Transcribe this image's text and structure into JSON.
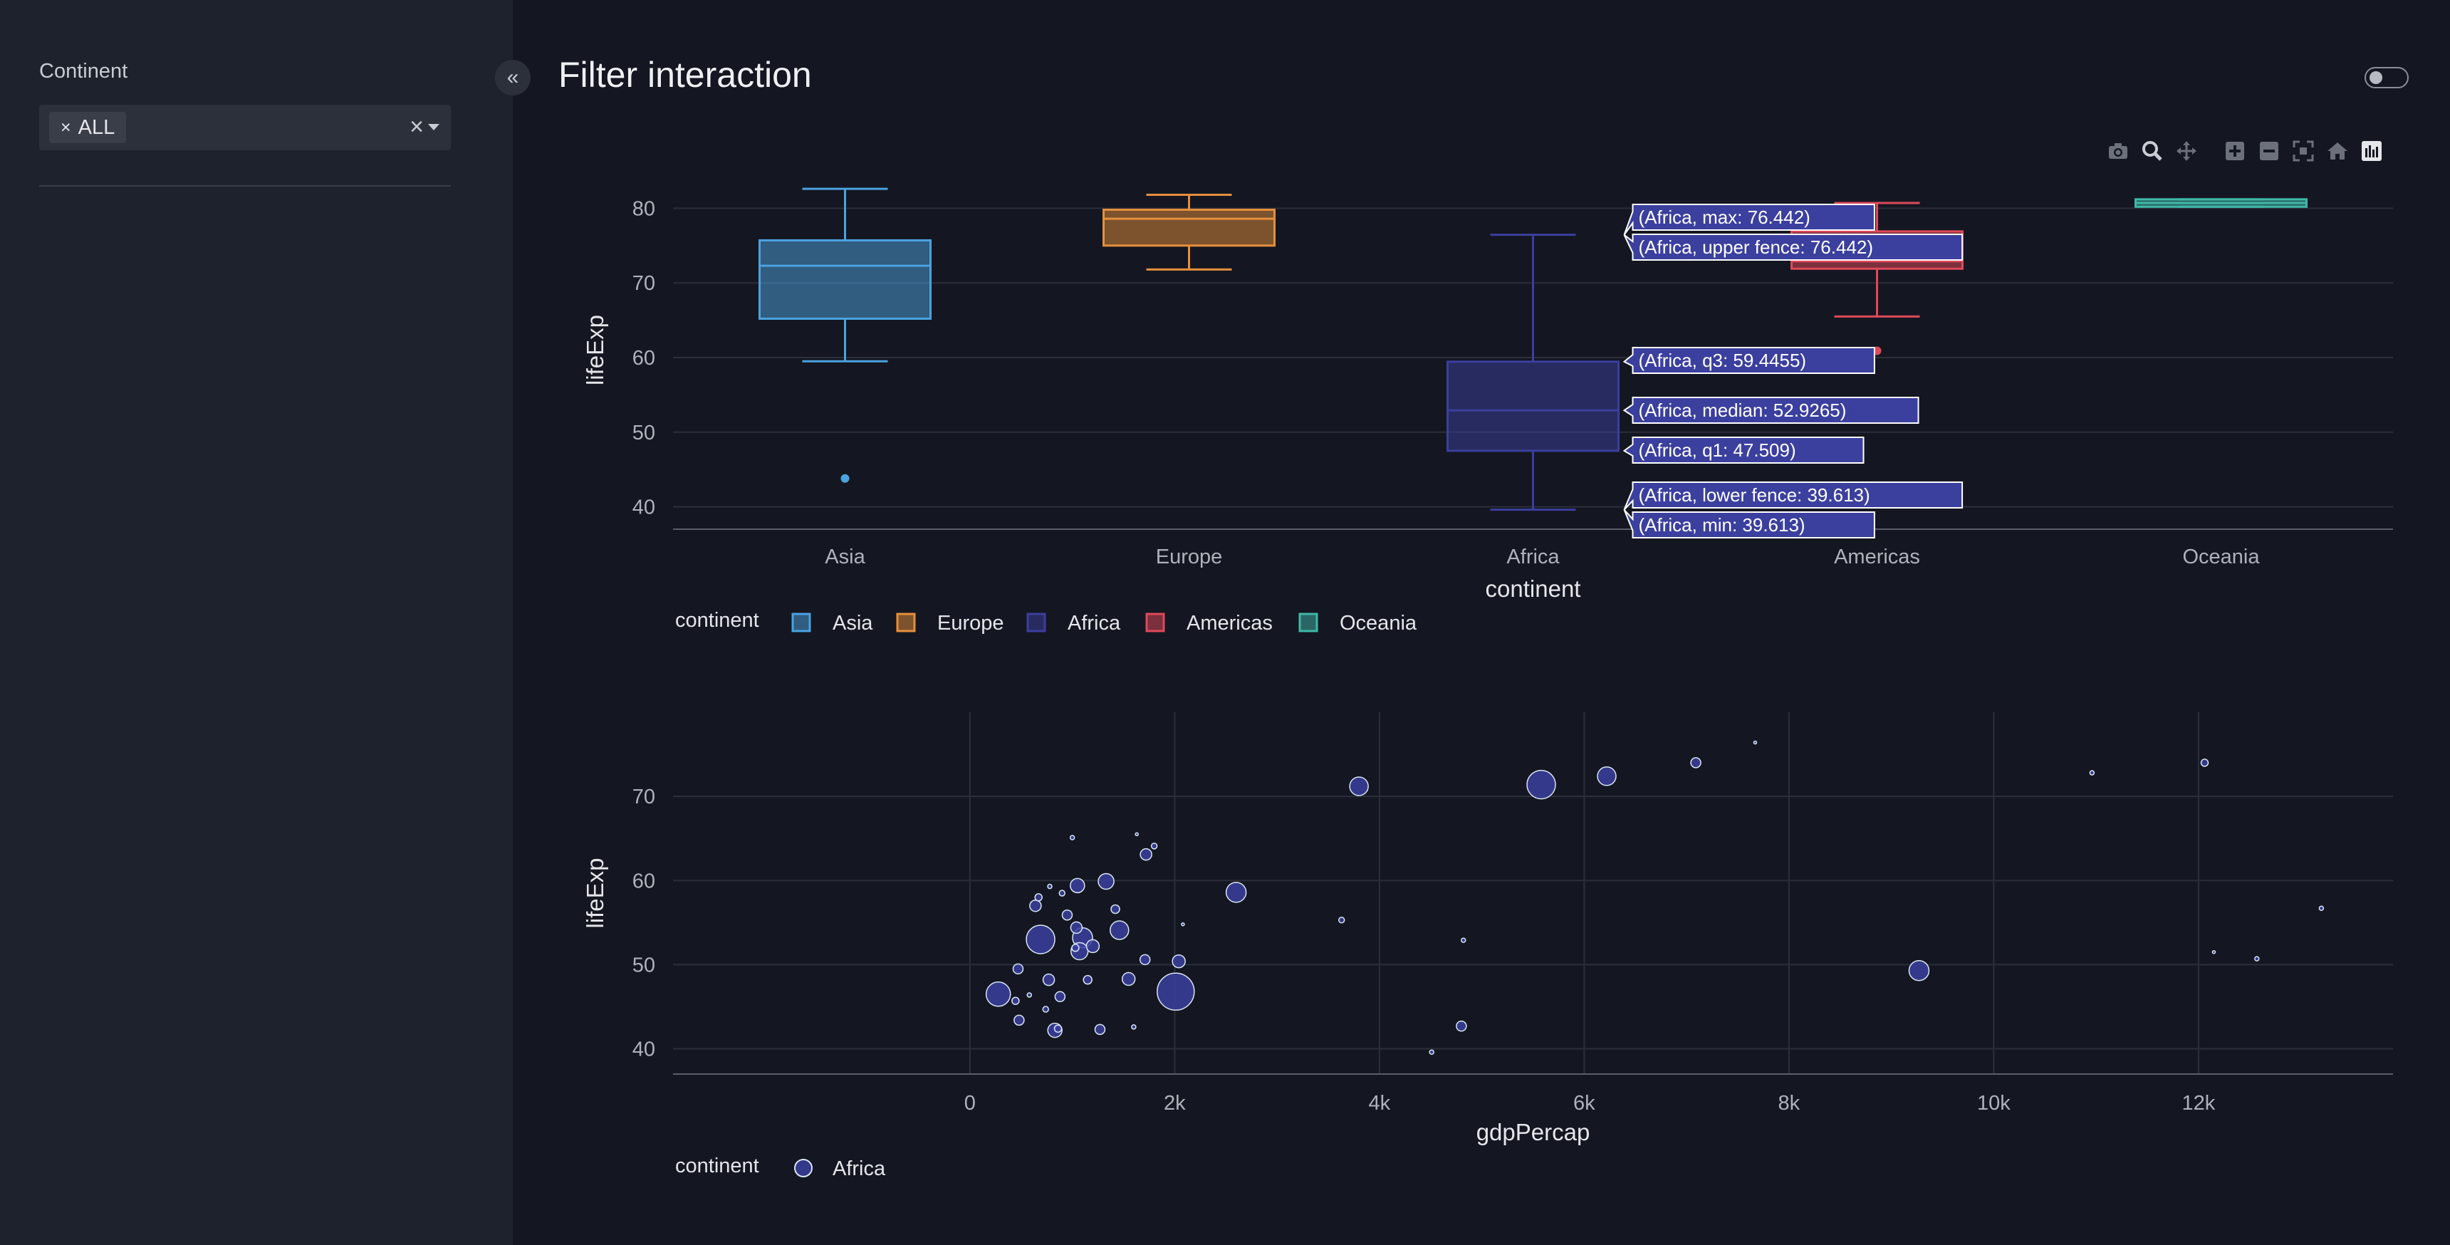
{
  "sidebar": {
    "filter_label": "Continent",
    "chip_label": "ALL",
    "chip_remove": "×",
    "clear": "×"
  },
  "header": {
    "title": "Filter interaction",
    "collapse_glyph": "«"
  },
  "modebar": {
    "icons": [
      "camera-icon",
      "zoom-icon",
      "pan-icon",
      "zoom-in-icon",
      "zoom-out-icon",
      "autoscale-icon",
      "reset-axes-icon",
      "plotly-logo-icon"
    ]
  },
  "colors": {
    "Asia": "#4ba3e0",
    "Europe": "#e68f3c",
    "Africa": "#3b3f9e",
    "Americas": "#e0495a",
    "Oceania": "#3fb8a8"
  },
  "chart_data": [
    {
      "type": "box",
      "xlabel": "continent",
      "ylabel": "lifeExp",
      "ylim": [
        37,
        85
      ],
      "yticks": [
        40,
        50,
        60,
        70,
        80
      ],
      "categories": [
        "Asia",
        "Europe",
        "Africa",
        "Americas",
        "Oceania"
      ],
      "series": [
        {
          "name": "Asia",
          "min": 59.5,
          "q1": 65.2,
          "median": 72.3,
          "q3": 75.7,
          "max": 82.6,
          "outliers": [
            43.8
          ]
        },
        {
          "name": "Europe",
          "min": 71.8,
          "q1": 75.0,
          "median": 78.6,
          "q3": 79.8,
          "max": 81.8,
          "outliers": []
        },
        {
          "name": "Africa",
          "min": 39.613,
          "q1": 47.509,
          "median": 52.9265,
          "q3": 59.4455,
          "max": 76.442,
          "outliers": []
        },
        {
          "name": "Americas",
          "min": 65.5,
          "q1": 71.9,
          "median": 72.9,
          "q3": 76.9,
          "max": 80.7,
          "outliers": [
            60.9
          ]
        },
        {
          "name": "Oceania",
          "min": 80.2,
          "q1": 80.2,
          "median": 80.7,
          "q3": 81.2,
          "max": 81.2,
          "outliers": []
        }
      ],
      "hover": {
        "category": "Africa",
        "trace_label": "Africa",
        "labels": [
          {
            "text": "(Africa, max: 76.442)",
            "y": 76.442
          },
          {
            "text": "(Africa, upper fence: 76.442)",
            "y": 76.442
          },
          {
            "text": "(Africa, q3: 59.4455)",
            "y": 59.4455
          },
          {
            "text": "(Africa, median: 52.9265)",
            "y": 52.9265
          },
          {
            "text": "(Africa, q1: 47.509)",
            "y": 47.509
          },
          {
            "text": "(Africa, lower fence: 39.613)",
            "y": 39.613
          },
          {
            "text": "(Africa, min: 39.613)",
            "y": 39.613
          }
        ]
      },
      "legend": {
        "title": "continent",
        "entries": [
          "Asia",
          "Europe",
          "Africa",
          "Americas",
          "Oceania"
        ],
        "placement": "bottom-left"
      }
    },
    {
      "type": "scatter",
      "xlabel": "gdpPercap",
      "ylabel": "lifeExp",
      "xlim": [
        -2900,
        13900
      ],
      "ylim": [
        37,
        80
      ],
      "xticks": [
        0,
        2000,
        4000,
        6000,
        8000,
        10000,
        12000
      ],
      "xticklabels": [
        "0",
        "2k",
        "4k",
        "6k",
        "8k",
        "10k",
        "12k"
      ],
      "yticks": [
        40,
        50,
        60,
        70
      ],
      "yticklabels": [
        "40",
        "50",
        "60",
        "70"
      ],
      "series": [
        {
          "name": "Africa",
          "points": [
            [
              277,
              46.5,
              17
            ],
            [
              445,
              45.7,
              5
            ],
            [
              470,
              49.5,
              7
            ],
            [
              480,
              43.4,
              7
            ],
            [
              580,
              46.4,
              3
            ],
            [
              640,
              57.0,
              8
            ],
            [
              670,
              58.0,
              5
            ],
            [
              690,
              53.0,
              20
            ],
            [
              740,
              44.7,
              4
            ],
            [
              770,
              48.2,
              8
            ],
            [
              780,
              59.3,
              3
            ],
            [
              830,
              42.2,
              10
            ],
            [
              860,
              42.4,
              5
            ],
            [
              880,
              46.2,
              7
            ],
            [
              900,
              58.5,
              4
            ],
            [
              950,
              55.9,
              7
            ],
            [
              1000,
              65.1,
              3
            ],
            [
              1030,
              52.0,
              5
            ],
            [
              1040,
              54.4,
              8
            ],
            [
              1050,
              59.4,
              10
            ],
            [
              1070,
              51.6,
              12
            ],
            [
              1100,
              53.2,
              14
            ],
            [
              1150,
              48.2,
              6
            ],
            [
              1200,
              52.2,
              9
            ],
            [
              1270,
              42.3,
              7
            ],
            [
              1330,
              59.9,
              11
            ],
            [
              1420,
              56.6,
              6
            ],
            [
              1460,
              54.1,
              13
            ],
            [
              1550,
              48.3,
              9
            ],
            [
              1600,
              42.6,
              3
            ],
            [
              1630,
              65.5,
              2
            ],
            [
              1710,
              50.6,
              7
            ],
            [
              1720,
              63.1,
              8
            ],
            [
              1800,
              64.1,
              4
            ],
            [
              2010,
              46.8,
              26
            ],
            [
              2040,
              50.4,
              9
            ],
            [
              2080,
              54.8,
              2
            ],
            [
              2600,
              58.6,
              14
            ],
            [
              3630,
              55.3,
              4
            ],
            [
              3800,
              71.2,
              13
            ],
            [
              4510,
              39.6,
              3
            ],
            [
              4800,
              42.7,
              7
            ],
            [
              4820,
              52.9,
              3
            ],
            [
              5580,
              71.4,
              20
            ],
            [
              6220,
              72.4,
              13
            ],
            [
              7090,
              74.0,
              7
            ],
            [
              7670,
              76.4,
              2
            ],
            [
              9270,
              49.3,
              14
            ],
            [
              10960,
              72.8,
              3
            ],
            [
              12060,
              74.0,
              5
            ],
            [
              12150,
              51.5,
              2
            ],
            [
              12570,
              50.7,
              3
            ],
            [
              13200,
              56.7,
              3
            ]
          ]
        }
      ],
      "legend": {
        "title": "continent",
        "entries": [
          "Africa"
        ],
        "placement": "bottom-left"
      }
    }
  ]
}
